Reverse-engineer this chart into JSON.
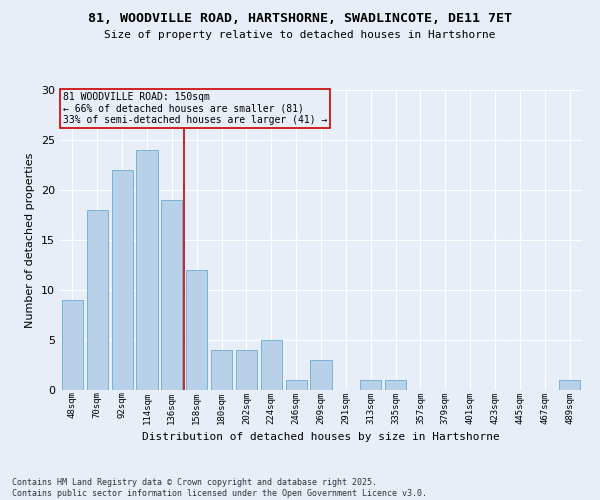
{
  "title_line1": "81, WOODVILLE ROAD, HARTSHORNE, SWADLINCOTE, DE11 7ET",
  "title_line2": "Size of property relative to detached houses in Hartshorne",
  "xlabel": "Distribution of detached houses by size in Hartshorne",
  "ylabel": "Number of detached properties",
  "categories": [
    "48sqm",
    "70sqm",
    "92sqm",
    "114sqm",
    "136sqm",
    "158sqm",
    "180sqm",
    "202sqm",
    "224sqm",
    "246sqm",
    "269sqm",
    "291sqm",
    "313sqm",
    "335sqm",
    "357sqm",
    "379sqm",
    "401sqm",
    "423sqm",
    "445sqm",
    "467sqm",
    "489sqm"
  ],
  "values": [
    9,
    18,
    22,
    24,
    19,
    12,
    4,
    4,
    5,
    1,
    3,
    0,
    1,
    1,
    0,
    0,
    0,
    0,
    0,
    0,
    1
  ],
  "bar_color": "#b8d0e8",
  "bar_edgecolor": "#6aaad4",
  "vline_x": 4.5,
  "vline_color": "#cc0000",
  "annotation_text": "81 WOODVILLE ROAD: 150sqm\n← 66% of detached houses are smaller (81)\n33% of semi-detached houses are larger (41) →",
  "annotation_box_edgecolor": "#cc0000",
  "ylim": [
    0,
    30
  ],
  "yticks": [
    0,
    5,
    10,
    15,
    20,
    25,
    30
  ],
  "background_color": "#e8eef8",
  "grid_color": "#ffffff",
  "footer_text": "Contains HM Land Registry data © Crown copyright and database right 2025.\nContains public sector information licensed under the Open Government Licence v3.0."
}
